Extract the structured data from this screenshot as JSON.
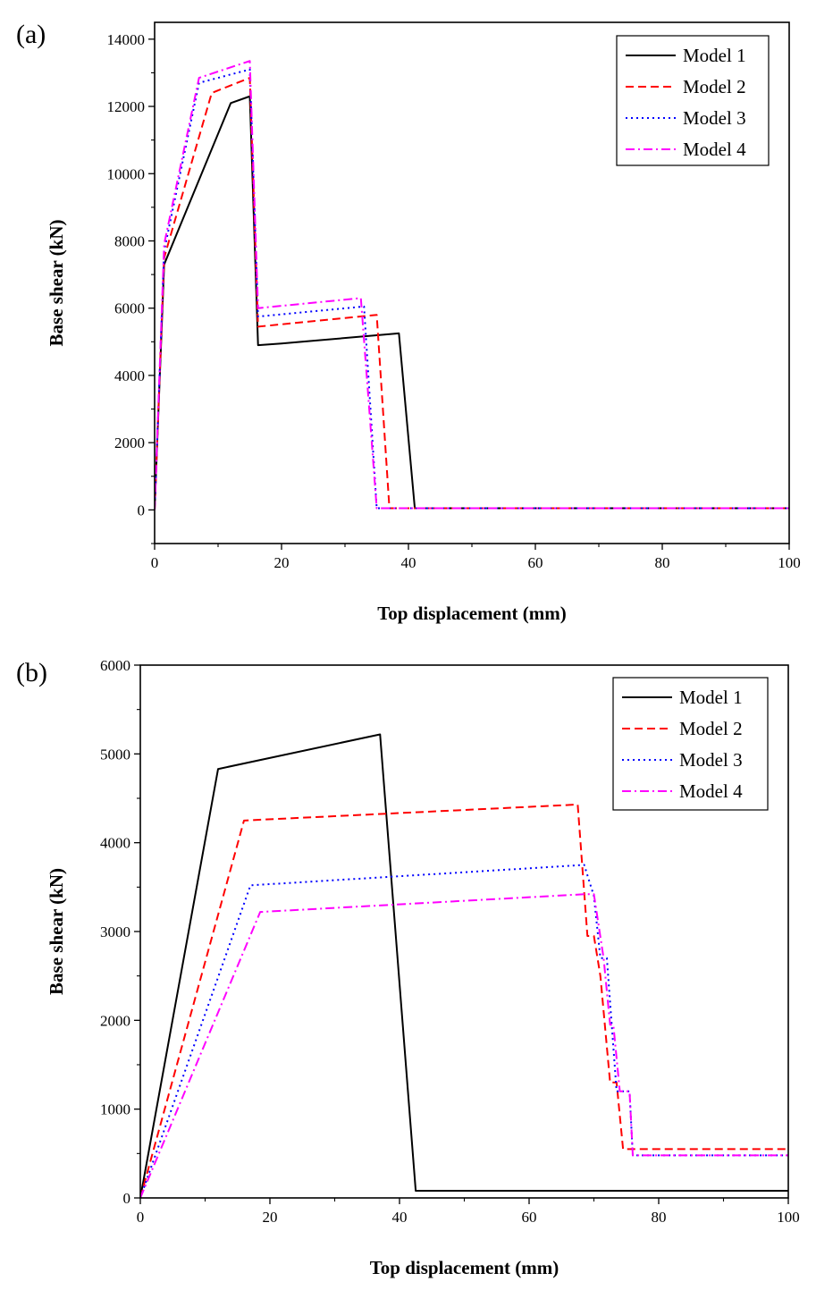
{
  "chart_data": [
    {
      "type": "line",
      "panel_label": "(a)",
      "xlabel": "Top displacement (mm)",
      "ylabel": "Base shear (kN)",
      "xlim": [
        0,
        100
      ],
      "ylim": [
        -1000,
        14500
      ],
      "xticks": [
        0,
        20,
        40,
        60,
        80,
        100
      ],
      "yticks": [
        0,
        2000,
        4000,
        6000,
        8000,
        10000,
        12000,
        14000
      ],
      "legend_position": "top-right",
      "series": [
        {
          "name": "Model 1",
          "color": "#000000",
          "dash": "solid",
          "x": [
            0,
            1.5,
            12,
            15,
            16.3,
            20,
            38.5,
            41,
            100
          ],
          "y": [
            0,
            7300,
            12100,
            12300,
            4900,
            4950,
            5250,
            50,
            50
          ]
        },
        {
          "name": "Model 2",
          "color": "#ff0000",
          "dash": "dash",
          "x": [
            0,
            1.5,
            9,
            15,
            16.3,
            35,
            37,
            100
          ],
          "y": [
            0,
            7500,
            12400,
            12850,
            5450,
            5800,
            50,
            50
          ]
        },
        {
          "name": "Model 3",
          "color": "#0000ff",
          "dash": "dot",
          "x": [
            0,
            1.5,
            7,
            15,
            16.3,
            33,
            35,
            100
          ],
          "y": [
            0,
            7700,
            12700,
            13100,
            5750,
            6050,
            50,
            50
          ]
        },
        {
          "name": "Model 4",
          "color": "#ff00ff",
          "dash": "dashdot",
          "x": [
            0,
            1.5,
            7,
            15,
            16.3,
            32.5,
            35,
            100
          ],
          "y": [
            0,
            7900,
            12850,
            13350,
            6000,
            6300,
            50,
            50
          ]
        }
      ]
    },
    {
      "type": "line",
      "panel_label": "(b)",
      "xlabel": "Top displacement (mm)",
      "ylabel": "Base shear (kN)",
      "xlim": [
        0,
        100
      ],
      "ylim": [
        0,
        6000
      ],
      "xticks": [
        0,
        20,
        40,
        60,
        80,
        100
      ],
      "yticks": [
        0,
        1000,
        2000,
        3000,
        4000,
        5000,
        6000
      ],
      "legend_position": "top-right",
      "series": [
        {
          "name": "Model 1",
          "color": "#000000",
          "dash": "solid",
          "x": [
            0,
            12,
            37,
            42.5,
            100
          ],
          "y": [
            0,
            4830,
            5220,
            80,
            80
          ]
        },
        {
          "name": "Model 2",
          "color": "#ff0000",
          "dash": "dash",
          "x": [
            0,
            16,
            67.5,
            69,
            70,
            71,
            72.5,
            73.5,
            74.5,
            100
          ],
          "y": [
            0,
            4250,
            4430,
            2950,
            2950,
            2500,
            1300,
            1300,
            550,
            550
          ]
        },
        {
          "name": "Model 3",
          "color": "#0000ff",
          "dash": "dot",
          "x": [
            0,
            17,
            68.5,
            70,
            71,
            72,
            73.5,
            74,
            75.5,
            76,
            100
          ],
          "y": [
            0,
            3520,
            3750,
            3400,
            2700,
            2700,
            1200,
            1200,
            1200,
            480,
            480
          ]
        },
        {
          "name": "Model 4",
          "color": "#ff00ff",
          "dash": "dashdot",
          "x": [
            0,
            18.5,
            68.5,
            70,
            71.5,
            72.5,
            73,
            74,
            75.5,
            76,
            100
          ],
          "y": [
            0,
            3220,
            3420,
            3420,
            2700,
            1950,
            1950,
            1200,
            1200,
            480,
            480
          ]
        }
      ]
    }
  ]
}
